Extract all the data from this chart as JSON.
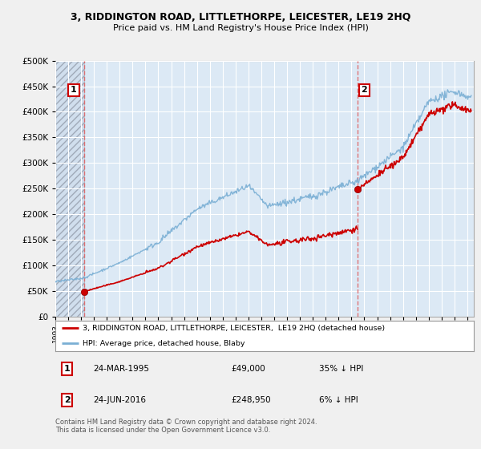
{
  "title": "3, RIDDINGTON ROAD, LITTLETHORPE, LEICESTER, LE19 2HQ",
  "subtitle": "Price paid vs. HM Land Registry's House Price Index (HPI)",
  "ylim": [
    0,
    500000
  ],
  "yticks": [
    0,
    50000,
    100000,
    150000,
    200000,
    250000,
    300000,
    350000,
    400000,
    450000,
    500000
  ],
  "ytick_labels": [
    "£0",
    "£50K",
    "£100K",
    "£150K",
    "£200K",
    "£250K",
    "£300K",
    "£350K",
    "£400K",
    "£450K",
    "£500K"
  ],
  "xlim_start": 1993.0,
  "xlim_end": 2025.5,
  "purchase1_year": 1995.23,
  "purchase1_price": 49000,
  "purchase2_year": 2016.48,
  "purchase2_price": 248950,
  "legend_line1": "3, RIDDINGTON ROAD, LITTLETHORPE, LEICESTER,  LE19 2HQ (detached house)",
  "legend_line2": "HPI: Average price, detached house, Blaby",
  "annotation1_label": "1",
  "annotation1_date": "24-MAR-1995",
  "annotation1_price": "£49,000",
  "annotation1_hpi": "35% ↓ HPI",
  "annotation2_label": "2",
  "annotation2_date": "24-JUN-2016",
  "annotation2_price": "£248,950",
  "annotation2_hpi": "6% ↓ HPI",
  "footer": "Contains HM Land Registry data © Crown copyright and database right 2024.\nThis data is licensed under the Open Government Licence v3.0.",
  "bg_color": "#f0f0f0",
  "plot_bg_color": "#dce9f5",
  "grid_color": "#ffffff",
  "red_line_color": "#cc0000",
  "blue_line_color": "#7aafd4",
  "dot_color": "#cc0000",
  "dashed_color": "#e06060"
}
